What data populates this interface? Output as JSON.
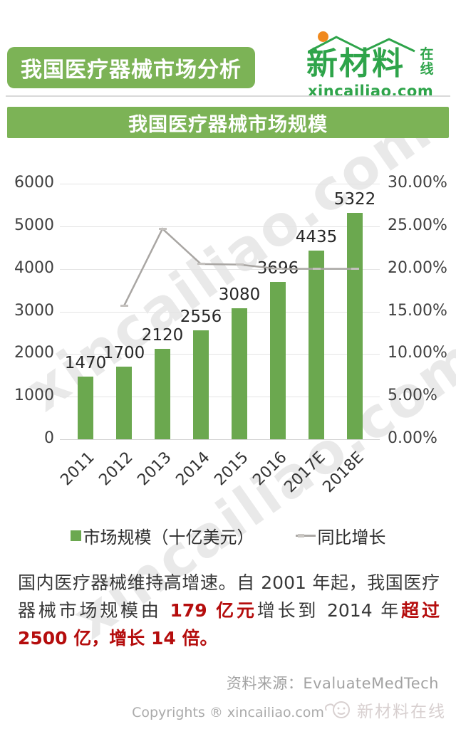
{
  "header": {
    "title_badge": "我国医疗器械市场分析",
    "logo": {
      "brand": "新材料",
      "suffix_top": "在",
      "suffix_bottom": "线",
      "domain": "xincailiao.com",
      "green": "#2ea44a",
      "dot_color": "#f0891e"
    }
  },
  "section_banner": "我国医疗器械市场规模",
  "chart_data": {
    "type": "bar",
    "subtype": "bar+line combo",
    "title": "我国医疗器械市场规模",
    "categories": [
      "2011",
      "2012",
      "2013",
      "2014",
      "2015",
      "2016",
      "2017E",
      "2018E"
    ],
    "series": [
      {
        "name": "市场规模（十亿美元）",
        "type": "bar",
        "color": "#6ba84f",
        "values": [
          1470,
          1700,
          2120,
          2556,
          3080,
          3696,
          4435,
          5322
        ]
      },
      {
        "name": "同比增长",
        "type": "line",
        "color": "#a9a6a3",
        "values": [
          null,
          15.65,
          24.71,
          20.57,
          20.5,
          20.0,
          20.0,
          20.0
        ]
      }
    ],
    "bar_labels": [
      "1470",
      "1700",
      "2120",
      "2556",
      "3080",
      "3696",
      "4435",
      "5322"
    ],
    "left_axis": {
      "min": 0,
      "max": 6000,
      "ticks": [
        "6000",
        "5000",
        "4000",
        "3000",
        "2000",
        "1000",
        "0"
      ]
    },
    "right_axis": {
      "min": 0,
      "max": 30,
      "ticks": [
        "30.00%",
        "25.00%",
        "20.00%",
        "15.00%",
        "10.00%",
        "5.00%",
        "0.00%"
      ]
    },
    "grid": true,
    "legend_position": "bottom"
  },
  "legend": {
    "bar_label": "市场规模（十亿美元）",
    "line_label": "同比增长"
  },
  "paragraph": {
    "emphasis_color": "#b50d0d",
    "segments": [
      {
        "text": "国内医疗器械维持高增速。自 2001 年起，我国医疗器械市场规模由 ",
        "emphasis": false
      },
      {
        "text": "179 亿元",
        "emphasis": true
      },
      {
        "text": "增长到 2014 年",
        "emphasis": false
      },
      {
        "text": "超过 2500 亿，增长 14 倍。",
        "emphasis": true
      }
    ]
  },
  "source_line": "资料来源：EvaluateMedTech",
  "footer": {
    "copyright": "Copyrights ® xincailiao.com",
    "watermark_brand": "新材料在线"
  },
  "watermark_text": "xincailiao.com",
  "colors": {
    "banner_green": "#7cb356",
    "bar_green": "#6ba84f",
    "line_gray": "#a9a6a3"
  }
}
